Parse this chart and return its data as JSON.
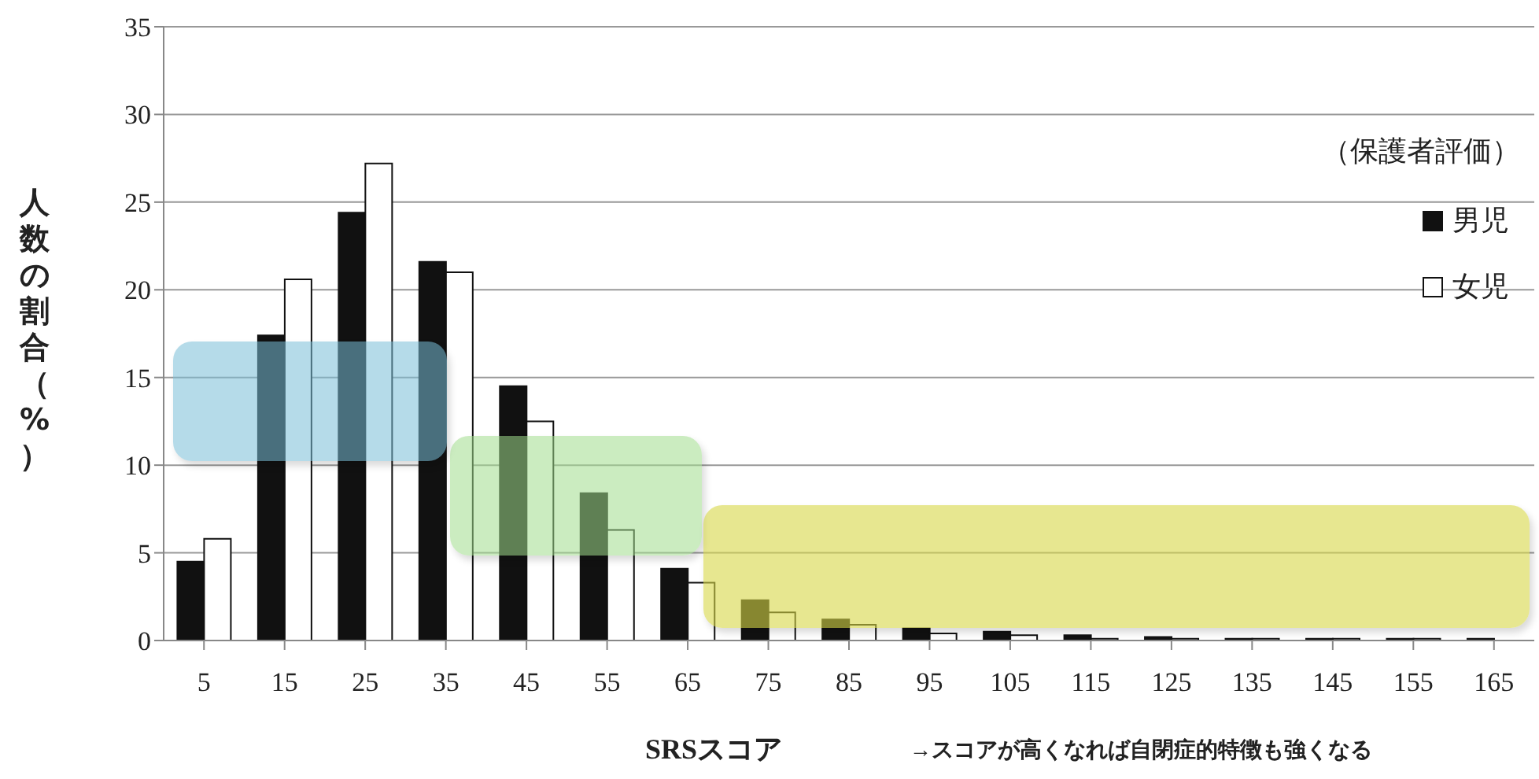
{
  "chart_data": {
    "type": "bar",
    "xlabel": "SRSスコア",
    "ylabel": "人数の割合（%）",
    "legend_title": "（保護者評価）",
    "annotations": [
      "→スコアが高くなれば自閉症的特徴も強くなる"
    ],
    "categories": [
      "5",
      "15",
      "25",
      "35",
      "45",
      "55",
      "65",
      "75",
      "85",
      "95",
      "105",
      "115",
      "125",
      "135",
      "145",
      "155",
      "165"
    ],
    "series": [
      {
        "name": "男児",
        "color": "#111111",
        "values": [
          4.5,
          17.4,
          24.4,
          21.6,
          14.5,
          8.4,
          4.1,
          2.3,
          1.2,
          0.7,
          0.5,
          0.3,
          0.2,
          0.1,
          0.1,
          0.1,
          0.1
        ]
      },
      {
        "name": "女児",
        "color": "#ffffff",
        "values": [
          5.8,
          20.6,
          27.2,
          21.0,
          12.5,
          6.3,
          3.3,
          1.6,
          0.9,
          0.4,
          0.3,
          0.1,
          0.1,
          0.1,
          0.1,
          0.1,
          0.0
        ]
      }
    ],
    "ylim": [
      0,
      35
    ],
    "yticks": [
      0,
      5,
      10,
      15,
      20,
      25,
      30,
      35
    ],
    "grid": "y",
    "legend": "right"
  }
}
